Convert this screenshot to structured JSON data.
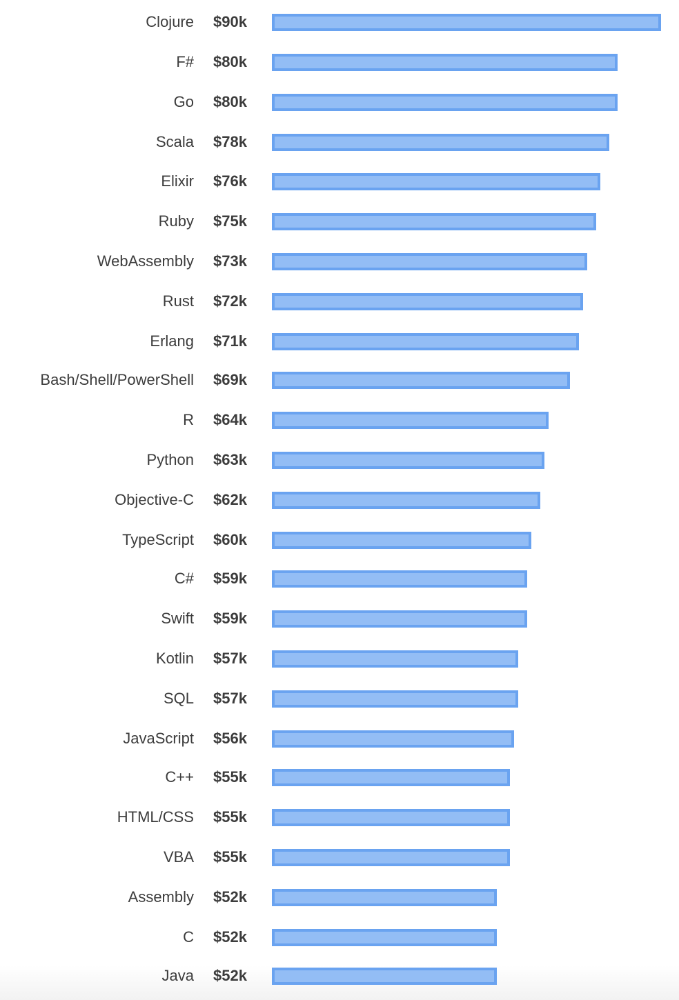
{
  "chart_data": {
    "type": "bar",
    "orientation": "horizontal",
    "title": "",
    "xlabel": "",
    "ylabel": "",
    "value_prefix": "$",
    "value_suffix": "k",
    "xlim": [
      0,
      90
    ],
    "grid": false,
    "legend": null,
    "categories": [
      "Clojure",
      "F#",
      "Go",
      "Scala",
      "Elixir",
      "Ruby",
      "WebAssembly",
      "Rust",
      "Erlang",
      "Bash/Shell/PowerShell",
      "R",
      "Python",
      "Objective-C",
      "TypeScript",
      "C#",
      "Swift",
      "Kotlin",
      "SQL",
      "JavaScript",
      "C++",
      "HTML/CSS",
      "VBA",
      "Assembly",
      "C",
      "Java"
    ],
    "values": [
      90,
      80,
      80,
      78,
      76,
      75,
      73,
      72,
      71,
      69,
      64,
      63,
      62,
      60,
      59,
      59,
      57,
      57,
      56,
      55,
      55,
      55,
      52,
      52,
      52
    ],
    "colors": {
      "bar_fill": "#93bdf5",
      "bar_border": "#6aa3f0",
      "text": "#3c3c3c"
    }
  },
  "rows": [
    {
      "label": "Clojure",
      "value": "$90k",
      "amount": 90
    },
    {
      "label": "F#",
      "value": "$80k",
      "amount": 80
    },
    {
      "label": "Go",
      "value": "$80k",
      "amount": 80
    },
    {
      "label": "Scala",
      "value": "$78k",
      "amount": 78
    },
    {
      "label": "Elixir",
      "value": "$76k",
      "amount": 76
    },
    {
      "label": "Ruby",
      "value": "$75k",
      "amount": 75
    },
    {
      "label": "WebAssembly",
      "value": "$73k",
      "amount": 73
    },
    {
      "label": "Rust",
      "value": "$72k",
      "amount": 72
    },
    {
      "label": "Erlang",
      "value": "$71k",
      "amount": 71
    },
    {
      "label": "Bash/Shell/PowerShell",
      "value": "$69k",
      "amount": 69
    },
    {
      "label": "R",
      "value": "$64k",
      "amount": 64
    },
    {
      "label": "Python",
      "value": "$63k",
      "amount": 63
    },
    {
      "label": "Objective-C",
      "value": "$62k",
      "amount": 62
    },
    {
      "label": "TypeScript",
      "value": "$60k",
      "amount": 60
    },
    {
      "label": "C#",
      "value": "$59k",
      "amount": 59
    },
    {
      "label": "Swift",
      "value": "$59k",
      "amount": 59
    },
    {
      "label": "Kotlin",
      "value": "$57k",
      "amount": 57
    },
    {
      "label": "SQL",
      "value": "$57k",
      "amount": 57
    },
    {
      "label": "JavaScript",
      "value": "$56k",
      "amount": 56
    },
    {
      "label": "C++",
      "value": "$55k",
      "amount": 55
    },
    {
      "label": "HTML/CSS",
      "value": "$55k",
      "amount": 55
    },
    {
      "label": "VBA",
      "value": "$55k",
      "amount": 55
    },
    {
      "label": "Assembly",
      "value": "$52k",
      "amount": 52
    },
    {
      "label": "C",
      "value": "$52k",
      "amount": 52
    },
    {
      "label": "Java",
      "value": "$52k",
      "amount": 52
    }
  ]
}
